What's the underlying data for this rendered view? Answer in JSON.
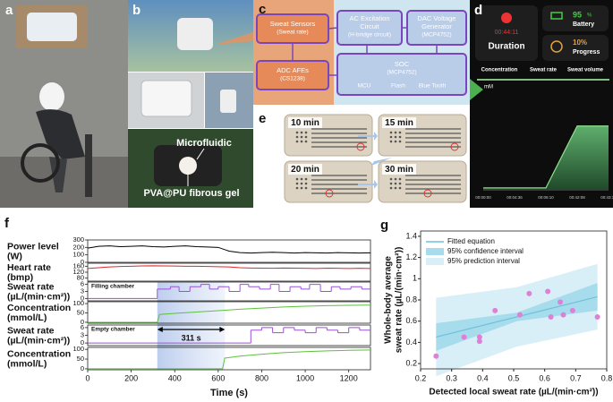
{
  "panel_labels": [
    "a",
    "b",
    "c",
    "d",
    "e",
    "f",
    "g"
  ],
  "panel_b": {
    "labels": [
      "Microfluidic",
      "PVA@PU fibrous gel"
    ]
  },
  "panel_c": {
    "nodes": [
      {
        "title": "Sweat Sensors",
        "sub": "(Sweat rate)"
      },
      {
        "title": "AC Excitation",
        "title2": "Circuit",
        "sub": "(H-bridge circuit)"
      },
      {
        "title": "DAC Voltage",
        "title2": "Generator",
        "sub": "(MCP4752)"
      },
      {
        "title": "ADC AFEs",
        "sub": "(CS1238)"
      },
      {
        "title": "SOC",
        "sub": "(MCP4752)",
        "parts": [
          "MCU",
          "Flash",
          "Blue Tooth"
        ]
      }
    ]
  },
  "panel_d": {
    "time": "00:44:11",
    "duration": "Duration",
    "battery_value": "95",
    "battery_unit": "%",
    "battery": "Battery",
    "progress_value": "10%",
    "progress": "Progress",
    "tabs": [
      "Concentration",
      "Sweat rate",
      "Sweat volume"
    ]
  },
  "panel_e": {
    "labels": [
      "10 min",
      "15 min",
      "20 min",
      "30 min"
    ]
  },
  "chart_data": [
    {
      "type": "area",
      "unit": "mM",
      "categories": [
        "00:00:00",
        "00:04:36",
        "00:06:10",
        "00:42:08",
        "00:43:35"
      ],
      "values": [
        2,
        2,
        2,
        66,
        66
      ],
      "ylim": [
        0,
        100
      ],
      "color": "#3f8f55"
    },
    {
      "type": "line",
      "xlim": [
        0,
        1300
      ],
      "xticks": [
        0,
        200,
        400,
        600,
        800,
        1000,
        1200
      ],
      "xlabel": "Time (s)",
      "annotation": {
        "label": "311 s",
        "x": [
          320,
          631
        ]
      },
      "rows": [
        {
          "ylabel": [
            "Power level",
            "(W)"
          ],
          "ylim": [
            0,
            300
          ],
          "yticks": [
            0,
            100,
            200,
            300
          ],
          "color": "#000000",
          "style": "line",
          "x": [
            0,
            50,
            100,
            150,
            200,
            250,
            300,
            350,
            400,
            450,
            500,
            550,
            600,
            650,
            700,
            750,
            800,
            850,
            900,
            950,
            1000,
            1050,
            1100,
            1150,
            1200,
            1250,
            1300
          ],
          "values": [
            190,
            215,
            220,
            210,
            215,
            220,
            210,
            205,
            215,
            220,
            210,
            205,
            200,
            150,
            130,
            125,
            130,
            135,
            130,
            125,
            130,
            128,
            125,
            130,
            128,
            125,
            127
          ]
        },
        {
          "ylabel": [
            "Heart rate",
            "(bmp)"
          ],
          "ylim": [
            60,
            180
          ],
          "yticks": [
            80,
            120,
            160
          ],
          "color": "#e0262b",
          "style": "line",
          "x": [
            0,
            50,
            100,
            150,
            200,
            250,
            300,
            350,
            400,
            450,
            500,
            550,
            600,
            650,
            700,
            750,
            800,
            850,
            900,
            950,
            1000,
            1050,
            1100,
            1150,
            1200,
            1250,
            1300
          ],
          "values": [
            145,
            150,
            155,
            158,
            160,
            162,
            163,
            162,
            161,
            160,
            160,
            158,
            157,
            155,
            150,
            148,
            147,
            146,
            148,
            147,
            146,
            145,
            147,
            146,
            145,
            146,
            145
          ]
        },
        {
          "ylabel": [
            "Sweat rate",
            "(µL/(min·cm²))"
          ],
          "note": "Filling chamber",
          "ylim": [
            -1,
            7
          ],
          "yticks": [
            0,
            3,
            6
          ],
          "color": "#9b4fd6",
          "style": "step",
          "x": [
            0,
            320,
            380,
            420,
            470,
            520,
            560,
            600,
            650,
            700,
            740,
            790,
            840,
            880,
            930,
            980,
            1020,
            1070,
            1120,
            1160,
            1210,
            1260,
            1300
          ],
          "values": [
            0,
            4,
            5,
            3,
            5,
            6,
            4,
            5,
            3,
            6,
            5,
            4,
            6,
            3,
            5,
            4,
            6,
            3,
            5,
            4,
            5,
            4,
            4
          ]
        },
        {
          "ylabel": [
            "Concentration",
            "(mmol/L)"
          ],
          "ylim": [
            -5,
            110
          ],
          "yticks": [
            0,
            50,
            100
          ],
          "color": "#5cc23a",
          "style": "line",
          "x": [
            0,
            320,
            330,
            400,
            500,
            600,
            700,
            800,
            900,
            1000,
            1100,
            1200,
            1300
          ],
          "values": [
            0,
            0,
            42,
            48,
            55,
            62,
            70,
            76,
            82,
            86,
            89,
            91,
            92
          ]
        },
        {
          "ylabel": [
            "Sweat rate",
            "(µL/(min·cm²))"
          ],
          "note": "Empty chamber",
          "ylim": [
            -1,
            7
          ],
          "yticks": [
            0,
            3,
            6
          ],
          "color": "#9b4fd6",
          "style": "step",
          "x": [
            0,
            750,
            800,
            850,
            900,
            950,
            1000,
            1050,
            1100,
            1150,
            1200,
            1250,
            1300
          ],
          "values": [
            0,
            5,
            6,
            4,
            6,
            5,
            4,
            6,
            5,
            4,
            6,
            5,
            5
          ]
        },
        {
          "ylabel": [
            "Concentration",
            "(mmol/L)"
          ],
          "ylim": [
            -5,
            110
          ],
          "yticks": [
            0,
            50,
            100
          ],
          "color": "#5cc23a",
          "style": "line",
          "x": [
            0,
            620,
            630,
            700,
            800,
            900,
            1000,
            1100,
            1200,
            1300
          ],
          "values": [
            0,
            0,
            55,
            65,
            75,
            83,
            88,
            92,
            95,
            97
          ]
        }
      ]
    },
    {
      "type": "scatter",
      "xlim": [
        0.2,
        0.8
      ],
      "xticks": [
        0.2,
        0.3,
        0.4,
        0.5,
        0.6,
        0.7,
        0.8
      ],
      "ylim": [
        0.15,
        1.45
      ],
      "yticks": [
        0.2,
        0.4,
        0.6,
        0.8,
        1.0,
        1.2,
        1.4
      ],
      "xlabel": "Detected local sweat rate (µL/(min·cm²))",
      "ylabel": [
        "Whole-body average",
        "sweat rate (µL/(min·cm²))"
      ],
      "x": [
        0.25,
        0.34,
        0.39,
        0.39,
        0.44,
        0.52,
        0.55,
        0.61,
        0.62,
        0.65,
        0.66,
        0.69,
        0.77
      ],
      "values": [
        0.27,
        0.45,
        0.41,
        0.45,
        0.7,
        0.66,
        0.86,
        0.88,
        0.64,
        0.78,
        0.66,
        0.7,
        0.64
      ],
      "color": "#e07fd8",
      "series": [
        {
          "name": "Fitted equation",
          "color": "#6fc0dc",
          "x": [
            0.25,
            0.77
          ],
          "values": [
            0.45,
            0.83
          ]
        },
        {
          "name": "95% confidence interval",
          "color": "#a6dcec",
          "x": [
            0.25,
            0.51,
            0.77
          ],
          "lower": [
            0.32,
            0.6,
            0.7
          ],
          "upper": [
            0.58,
            0.68,
            0.96
          ]
        },
        {
          "name": "95% prediction interval",
          "color": "#d9eff7",
          "x": [
            0.25,
            0.51,
            0.77
          ],
          "lower": [
            0.08,
            0.36,
            0.52
          ],
          "upper": [
            0.82,
            0.92,
            1.14
          ]
        }
      ]
    }
  ]
}
